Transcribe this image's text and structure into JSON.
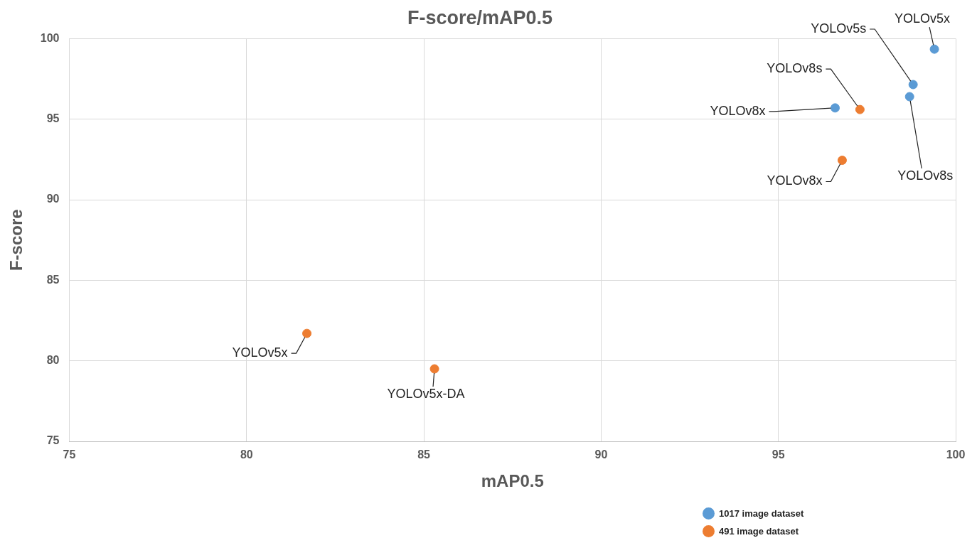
{
  "chart_data": {
    "type": "scatter",
    "title": "F-score/mAP0.5",
    "xlabel": "mAP0.5",
    "ylabel": "F-score",
    "xlim": [
      75,
      100
    ],
    "xticks": [
      75,
      80,
      85,
      90,
      95,
      100
    ],
    "ylim": [
      75,
      100
    ],
    "yticks": [
      75,
      80,
      85,
      90,
      95,
      100
    ],
    "grid": true,
    "legend": "bottom right",
    "marker": "circle",
    "series": [
      {
        "name": "1017 image dataset",
        "color": "#5b9bd5",
        "x": [
          99.4,
          98.8,
          98.7,
          96.6
        ],
        "values": [
          99.35,
          97.15,
          96.4,
          95.7
        ]
      },
      {
        "name": "491 image dataset",
        "color": "#ed7d31",
        "x": [
          97.3,
          96.8,
          81.7,
          85.3
        ],
        "values": [
          95.6,
          92.45,
          81.7,
          79.5
        ]
      }
    ],
    "annotations": [
      {
        "text": "YOLOv5x",
        "x": 99.4,
        "y": 99.35
      },
      {
        "text": "YOLOv5s",
        "x": 98.8,
        "y": 97.15
      },
      {
        "text": "YOLOv8s",
        "x": 98.7,
        "y": 96.4
      },
      {
        "text": "YOLOv8x",
        "x": 96.6,
        "y": 95.7
      },
      {
        "text": "YOLOv8s",
        "x": 97.3,
        "y": 95.6
      },
      {
        "text": "YOLOv8x",
        "x": 96.8,
        "y": 92.45
      },
      {
        "text": "YOLOv5x",
        "x": 81.7,
        "y": 81.7
      },
      {
        "text": "YOLOv5x-DA",
        "x": 85.3,
        "y": 79.5
      }
    ]
  }
}
